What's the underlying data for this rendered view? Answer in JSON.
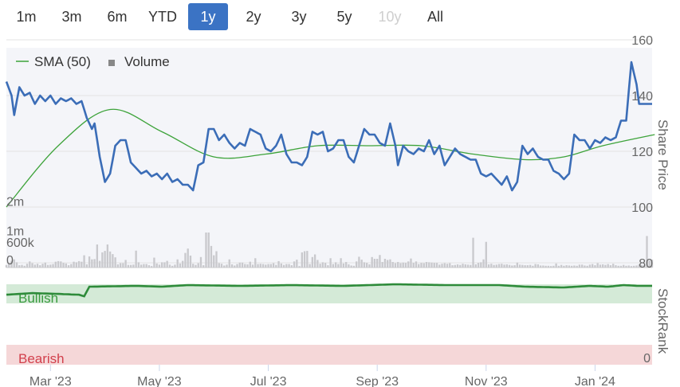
{
  "range_buttons": [
    {
      "label": "1m",
      "state": "normal"
    },
    {
      "label": "3m",
      "state": "normal"
    },
    {
      "label": "6m",
      "state": "normal"
    },
    {
      "label": "YTD",
      "state": "normal"
    },
    {
      "label": "1y",
      "state": "active"
    },
    {
      "label": "2y",
      "state": "normal"
    },
    {
      "label": "3y",
      "state": "normal"
    },
    {
      "label": "5y",
      "state": "normal"
    },
    {
      "label": "10y",
      "state": "disabled"
    },
    {
      "label": "All",
      "state": "normal"
    }
  ],
  "colors": {
    "price_line": "#3b6db7",
    "sma_line": "#3da33a",
    "volume_bar": "#c9c9cd",
    "plot_background": "#f4f5f9",
    "stockrank_line": "#2e8b3a",
    "bullish_band": "#d4ead7",
    "bearish_band": "#f5d7d8",
    "bullish_text": "#3a9a3f",
    "bearish_text": "#d2404c",
    "active_button": "#3b73c4"
  },
  "chart_data": {
    "type": "line",
    "legend": [
      {
        "label": "SMA (50)",
        "symbol": "line"
      },
      {
        "label": "Volume",
        "symbol": "square"
      }
    ],
    "x_tick_labels": [
      "Mar '23",
      "May '23",
      "Jul '23",
      "Sep '23",
      "Nov '23",
      "Jan '24"
    ],
    "x_ticks": [
      {
        "label": "Mar '23",
        "index": 17
      },
      {
        "label": "May '23",
        "index": 59
      },
      {
        "label": "Jul '23",
        "index": 101
      },
      {
        "label": "Sep '23",
        "index": 143
      },
      {
        "label": "Nov '23",
        "index": 185
      },
      {
        "label": "Jan '24",
        "index": 227
      }
    ],
    "price_axis": {
      "title": "Share Price",
      "ticks": [
        160,
        140,
        120,
        100,
        80
      ],
      "ylim": [
        80,
        160
      ]
    },
    "volume_axis": {
      "ticks": [
        "2m",
        "1m",
        "600k",
        "0"
      ],
      "ylim": [
        0,
        3000000
      ]
    },
    "stockrank_axis": {
      "title": "StockRank",
      "ticks": [
        "0"
      ],
      "ylim": [
        0,
        100
      ],
      "bullish_label": "Bullish",
      "bearish_label": "Bearish"
    },
    "series": [
      {
        "name": "SMA (50)",
        "anchors": [
          [
            0,
            100
          ],
          [
            20,
            122
          ],
          [
            40,
            135
          ],
          [
            60,
            127
          ],
          [
            80,
            118
          ],
          [
            100,
            119
          ],
          [
            120,
            122
          ],
          [
            140,
            122
          ],
          [
            160,
            122
          ],
          [
            180,
            119
          ],
          [
            200,
            117
          ],
          [
            215,
            118
          ],
          [
            230,
            122
          ],
          [
            250,
            126
          ]
        ]
      },
      {
        "name": "Price",
        "anchors": [
          [
            0,
            145
          ],
          [
            2,
            140
          ],
          [
            3,
            133
          ],
          [
            5,
            143
          ],
          [
            7,
            140
          ],
          [
            9,
            141
          ],
          [
            11,
            137
          ],
          [
            13,
            140
          ],
          [
            15,
            138
          ],
          [
            17,
            140
          ],
          [
            19,
            137
          ],
          [
            21,
            139
          ],
          [
            23,
            138
          ],
          [
            25,
            139
          ],
          [
            27,
            137
          ],
          [
            29,
            138
          ],
          [
            31,
            132
          ],
          [
            33,
            128
          ],
          [
            34,
            130
          ],
          [
            36,
            118
          ],
          [
            38,
            109
          ],
          [
            40,
            112
          ],
          [
            42,
            122
          ],
          [
            44,
            124
          ],
          [
            46,
            124
          ],
          [
            48,
            116
          ],
          [
            50,
            114
          ],
          [
            52,
            112
          ],
          [
            54,
            113
          ],
          [
            56,
            111
          ],
          [
            58,
            112
          ],
          [
            60,
            110
          ],
          [
            62,
            112
          ],
          [
            64,
            109
          ],
          [
            66,
            110
          ],
          [
            68,
            108
          ],
          [
            70,
            108
          ],
          [
            72,
            106
          ],
          [
            74,
            115
          ],
          [
            76,
            116
          ],
          [
            78,
            128
          ],
          [
            80,
            128
          ],
          [
            82,
            124
          ],
          [
            84,
            126
          ],
          [
            86,
            123
          ],
          [
            88,
            121
          ],
          [
            90,
            123
          ],
          [
            92,
            122
          ],
          [
            94,
            128
          ],
          [
            96,
            127
          ],
          [
            98,
            126
          ],
          [
            100,
            121
          ],
          [
            102,
            120
          ],
          [
            104,
            122
          ],
          [
            106,
            126
          ],
          [
            108,
            119
          ],
          [
            110,
            116
          ],
          [
            112,
            116
          ],
          [
            114,
            115
          ],
          [
            116,
            118
          ],
          [
            118,
            127
          ],
          [
            120,
            126
          ],
          [
            122,
            127
          ],
          [
            124,
            120
          ],
          [
            126,
            121
          ],
          [
            128,
            124
          ],
          [
            130,
            124
          ],
          [
            132,
            118
          ],
          [
            134,
            116
          ],
          [
            136,
            122
          ],
          [
            138,
            128
          ],
          [
            140,
            126
          ],
          [
            142,
            126
          ],
          [
            144,
            123
          ],
          [
            146,
            122
          ],
          [
            148,
            130
          ],
          [
            150,
            122
          ],
          [
            151,
            115
          ],
          [
            153,
            122
          ],
          [
            155,
            120
          ],
          [
            157,
            119
          ],
          [
            159,
            121
          ],
          [
            161,
            120
          ],
          [
            163,
            124
          ],
          [
            165,
            119
          ],
          [
            167,
            122
          ],
          [
            169,
            115
          ],
          [
            171,
            118
          ],
          [
            173,
            121
          ],
          [
            175,
            119
          ],
          [
            177,
            118
          ],
          [
            179,
            117
          ],
          [
            181,
            117
          ],
          [
            183,
            112
          ],
          [
            185,
            111
          ],
          [
            187,
            112
          ],
          [
            189,
            110
          ],
          [
            191,
            108
          ],
          [
            193,
            111
          ],
          [
            195,
            106
          ],
          [
            197,
            109
          ],
          [
            199,
            122
          ],
          [
            201,
            119
          ],
          [
            203,
            121
          ],
          [
            205,
            118
          ],
          [
            207,
            117
          ],
          [
            209,
            117
          ],
          [
            211,
            113
          ],
          [
            213,
            112
          ],
          [
            215,
            110
          ],
          [
            217,
            112
          ],
          [
            219,
            126
          ],
          [
            221,
            124
          ],
          [
            223,
            124
          ],
          [
            225,
            121
          ],
          [
            227,
            124
          ],
          [
            229,
            123
          ],
          [
            231,
            125
          ],
          [
            233,
            124
          ],
          [
            235,
            125
          ],
          [
            237,
            131
          ],
          [
            239,
            131
          ],
          [
            241,
            152
          ],
          [
            243,
            144
          ],
          [
            244,
            137
          ]
        ]
      }
    ],
    "volume": [
      90000,
      130000,
      230000,
      280000,
      180000,
      80000,
      90000,
      60000,
      130000,
      210000,
      150000,
      100000,
      130000,
      80000,
      130000,
      170000,
      90000,
      100000,
      120000,
      200000,
      220000,
      210000,
      160000,
      140000,
      80000,
      120000,
      200000,
      180000,
      220000,
      200000,
      420000,
      110000,
      380000,
      280000,
      290000,
      790000,
      230000,
      520000,
      570000,
      790000,
      550000,
      460000,
      350000,
      110000,
      150000,
      150000,
      260000,
      90000,
      90000,
      100000,
      580000,
      180000,
      100000,
      120000,
      120000,
      80000,
      50000,
      340000,
      140000,
      100000,
      180000,
      180000,
      230000,
      100000,
      60000,
      100000,
      280000,
      140000,
      230000,
      500000,
      650000,
      410000,
      130000,
      90000,
      150000,
      360000,
      80000,
      1200000,
      1200000,
      740000,
      420000,
      560000,
      150000,
      130000,
      70000,
      100000,
      280000,
      110000,
      70000,
      120000,
      170000,
      170000,
      120000,
      110000,
      200000,
      100000,
      320000,
      120000,
      130000,
      120000,
      100000,
      120000,
      120000,
      150000,
      90000,
      220000,
      140000,
      90000,
      120000,
      120000,
      80000,
      210000,
      270000,
      50000,
      520000,
      560000,
      570000,
      120000,
      360000,
      450000,
      260000,
      130000,
      180000,
      160000,
      80000,
      320000,
      120000,
      180000,
      120000,
      320000,
      140000,
      190000,
      110000,
      70000,
      60000,
      210000,
      370000,
      270000,
      180000,
      160000,
      110000,
      360000,
      300000,
      300000,
      430000,
      190000,
      300000,
      260000,
      280000,
      190000,
      150000,
      190000,
      150000,
      170000,
      160000,
      210000,
      310000,
      160000,
      210000,
      120000,
      160000,
      150000,
      190000,
      180000,
      170000,
      160000,
      160000,
      100000,
      130000,
      150000,
      130000,
      150000,
      80000,
      90000,
      110000,
      90000,
      130000,
      110000,
      100000,
      90000,
      1020000,
      110000,
      160000,
      180000,
      280000,
      880000,
      110000,
      130000,
      90000,
      100000,
      120000,
      130000,
      100000,
      110000,
      90000,
      70000,
      80000,
      170000,
      100000,
      90000,
      80000,
      80000,
      90000,
      60000,
      120000,
      110000,
      70000,
      70000,
      60000,
      60000,
      50000,
      60000,
      140000,
      60000,
      90000,
      60000,
      80000,
      70000,
      60000,
      70000,
      60000,
      100000,
      100000,
      70000,
      60000,
      100000,
      120000,
      80000,
      150000,
      100000,
      110000,
      90000,
      120000,
      80000,
      130000,
      80000,
      60000,
      60000,
      90000,
      60000,
      70000,
      50000,
      60000,
      70000,
      110000,
      90000,
      80000,
      1080000,
      240000,
      270000
    ],
    "stockrank": [
      {
        "i": 0,
        "v": 87
      },
      {
        "i": 10,
        "v": 89
      },
      {
        "i": 20,
        "v": 88
      },
      {
        "i": 28,
        "v": 87
      },
      {
        "i": 30,
        "v": 85
      },
      {
        "i": 32,
        "v": 97
      },
      {
        "i": 50,
        "v": 98
      },
      {
        "i": 60,
        "v": 97
      },
      {
        "i": 70,
        "v": 99
      },
      {
        "i": 90,
        "v": 98
      },
      {
        "i": 110,
        "v": 99
      },
      {
        "i": 130,
        "v": 98
      },
      {
        "i": 150,
        "v": 100
      },
      {
        "i": 170,
        "v": 99
      },
      {
        "i": 190,
        "v": 99
      },
      {
        "i": 200,
        "v": 97
      },
      {
        "i": 215,
        "v": 96
      },
      {
        "i": 225,
        "v": 98
      },
      {
        "i": 232,
        "v": 97
      },
      {
        "i": 238,
        "v": 99
      },
      {
        "i": 244,
        "v": 98
      }
    ]
  }
}
